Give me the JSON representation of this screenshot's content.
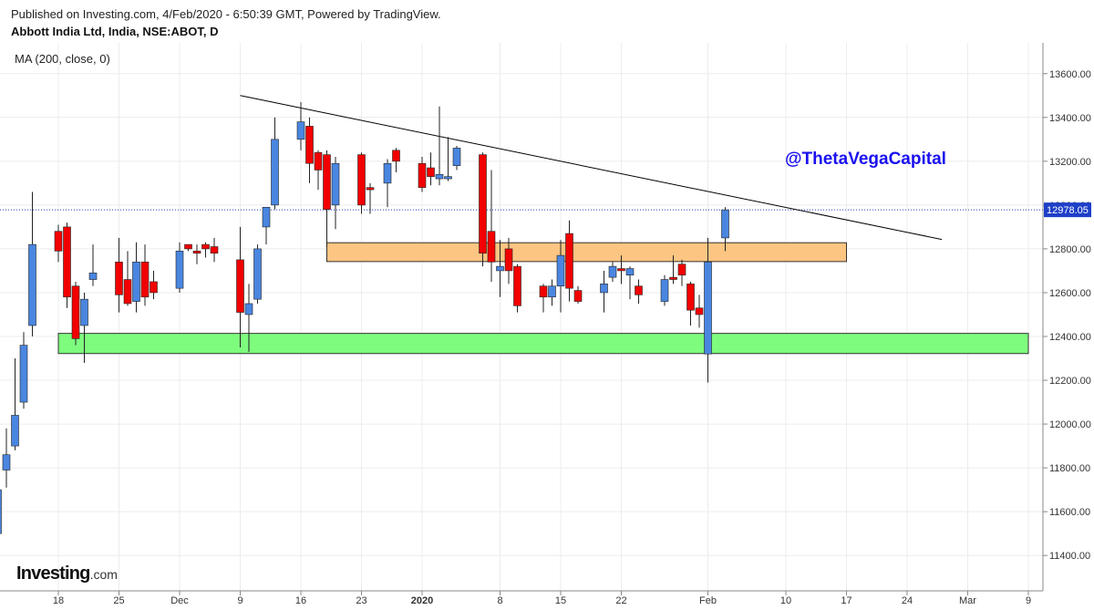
{
  "header": {
    "published_line": "Published on Investing.com, 4/Feb/2020 - 6:50:39 GMT, Powered by TradingView.",
    "symbol_line": "Abbott India Ltd, India, NSE:ABOT, D"
  },
  "indicator_label": "MA (200, close, 0)",
  "watermark": {
    "brand": "Investing",
    "brand_suffix": ".com",
    "handle": "@ThetaVegaCapital"
  },
  "colors": {
    "up": "#4a86e0",
    "down": "#f20000",
    "wick": "#222222",
    "resistance_zone": "#fcc582",
    "support_zone": "#7efc7e",
    "trendline": "#000000",
    "last_price_line": "#1e3fc8",
    "handle_text": "#1a10f0"
  },
  "chart_data": {
    "type": "candlestick",
    "title": "Abbott India Ltd, India, NSE:ABOT, D",
    "y_axis_ticks": [
      "11400.00",
      "11600.00",
      "11800.00",
      "12000.00",
      "12200.00",
      "12400.00",
      "12600.00",
      "12800.00",
      "13000.00",
      "13200.00",
      "13400.00",
      "13600.00"
    ],
    "x_axis_ticks": [
      {
        "label": "18",
        "date": "2019-11-18"
      },
      {
        "label": "25",
        "date": "2019-11-25"
      },
      {
        "label": "Dec",
        "date": "2019-12-02"
      },
      {
        "label": "9",
        "date": "2019-12-09"
      },
      {
        "label": "16",
        "date": "2019-12-16"
      },
      {
        "label": "23",
        "date": "2019-12-23"
      },
      {
        "label": "2020",
        "date": "2019-12-30",
        "bold": true
      },
      {
        "label": "8",
        "date": "2020-01-08"
      },
      {
        "label": "15",
        "date": "2020-01-15"
      },
      {
        "label": "22",
        "date": "2020-01-22"
      },
      {
        "label": "Feb",
        "date": "2020-02-01"
      },
      {
        "label": "10",
        "date": "2020-02-10"
      },
      {
        "label": "17",
        "date": "2020-02-17"
      },
      {
        "label": "24",
        "date": "2020-02-24"
      },
      {
        "label": "Mar",
        "date": "2020-03-02"
      },
      {
        "label": "9",
        "date": "2020-03-09"
      }
    ],
    "last_price": "12978.05",
    "candles": [
      {
        "d": "2019-11-11",
        "o": 11500,
        "h": 11780,
        "l": 11360,
        "c": 11700
      },
      {
        "d": "2019-11-12",
        "o": 11790,
        "h": 11980,
        "l": 11710,
        "c": 11860
      },
      {
        "d": "2019-11-13",
        "o": 11900,
        "h": 12300,
        "l": 11880,
        "c": 12040
      },
      {
        "d": "2019-11-14",
        "o": 12100,
        "h": 12420,
        "l": 12070,
        "c": 12360
      },
      {
        "d": "2019-11-15",
        "o": 12450,
        "h": 13060,
        "l": 12400,
        "c": 12820
      },
      {
        "d": "2019-11-18",
        "o": 12880,
        "h": 12910,
        "l": 12740,
        "c": 12790
      },
      {
        "d": "2019-11-19",
        "o": 12900,
        "h": 12920,
        "l": 12530,
        "c": 12580
      },
      {
        "d": "2019-11-20",
        "o": 12630,
        "h": 12650,
        "l": 12360,
        "c": 12390
      },
      {
        "d": "2019-11-21",
        "o": 12450,
        "h": 12600,
        "l": 12280,
        "c": 12570
      },
      {
        "d": "2019-11-22",
        "o": 12660,
        "h": 12820,
        "l": 12630,
        "c": 12690
      },
      {
        "d": "2019-11-25",
        "o": 12740,
        "h": 12850,
        "l": 12510,
        "c": 12590
      },
      {
        "d": "2019-11-26",
        "o": 12660,
        "h": 12790,
        "l": 12540,
        "c": 12550
      },
      {
        "d": "2019-11-27",
        "o": 12560,
        "h": 12830,
        "l": 12510,
        "c": 12740
      },
      {
        "d": "2019-11-28",
        "o": 12740,
        "h": 12820,
        "l": 12540,
        "c": 12580
      },
      {
        "d": "2019-11-29",
        "o": 12650,
        "h": 12700,
        "l": 12570,
        "c": 12600
      },
      {
        "d": "2019-12-02",
        "o": 12620,
        "h": 12830,
        "l": 12600,
        "c": 12790
      },
      {
        "d": "2019-12-03",
        "o": 12820,
        "h": 12820,
        "l": 12790,
        "c": 12800
      },
      {
        "d": "2019-12-04",
        "o": 12790,
        "h": 12820,
        "l": 12730,
        "c": 12780
      },
      {
        "d": "2019-12-05",
        "o": 12820,
        "h": 12830,
        "l": 12760,
        "c": 12800
      },
      {
        "d": "2019-12-06",
        "o": 12810,
        "h": 12850,
        "l": 12740,
        "c": 12780
      },
      {
        "d": "2019-12-09",
        "o": 12750,
        "h": 12900,
        "l": 12350,
        "c": 12510
      },
      {
        "d": "2019-12-10",
        "o": 12500,
        "h": 12640,
        "l": 12330,
        "c": 12550
      },
      {
        "d": "2019-12-11",
        "o": 12570,
        "h": 12820,
        "l": 12550,
        "c": 12800
      },
      {
        "d": "2019-12-12",
        "o": 12900,
        "h": 12980,
        "l": 12820,
        "c": 12990
      },
      {
        "d": "2019-12-13",
        "o": 13000,
        "h": 13400,
        "l": 12980,
        "c": 13300
      },
      {
        "d": "2019-12-16",
        "o": 13300,
        "h": 13470,
        "l": 13250,
        "c": 13380
      },
      {
        "d": "2019-12-17",
        "o": 13360,
        "h": 13400,
        "l": 13100,
        "c": 13190
      },
      {
        "d": "2019-12-18",
        "o": 13240,
        "h": 13250,
        "l": 13070,
        "c": 13160
      },
      {
        "d": "2019-12-19",
        "o": 13230,
        "h": 13250,
        "l": 12810,
        "c": 12980
      },
      {
        "d": "2019-12-20",
        "o": 13000,
        "h": 13220,
        "l": 12890,
        "c": 13190
      },
      {
        "d": "2019-12-23",
        "o": 13230,
        "h": 13240,
        "l": 12960,
        "c": 13000
      },
      {
        "d": "2019-12-24",
        "o": 13080,
        "h": 13100,
        "l": 12960,
        "c": 13070
      },
      {
        "d": "2019-12-26",
        "o": 13100,
        "h": 13210,
        "l": 12990,
        "c": 13190
      },
      {
        "d": "2019-12-27",
        "o": 13250,
        "h": 13260,
        "l": 13150,
        "c": 13200
      },
      {
        "d": "2019-12-30",
        "o": 13190,
        "h": 13220,
        "l": 13060,
        "c": 13080
      },
      {
        "d": "2019-12-31",
        "o": 13170,
        "h": 13240,
        "l": 13090,
        "c": 13130
      },
      {
        "d": "2020-01-01",
        "o": 13120,
        "h": 13450,
        "l": 13090,
        "c": 13140
      },
      {
        "d": "2020-01-02",
        "o": 13120,
        "h": 13310,
        "l": 13110,
        "c": 13130
      },
      {
        "d": "2020-01-03",
        "o": 13180,
        "h": 13270,
        "l": 13160,
        "c": 13260
      },
      {
        "d": "2020-01-06",
        "o": 13230,
        "h": 13240,
        "l": 12720,
        "c": 12780
      },
      {
        "d": "2020-01-07",
        "o": 12880,
        "h": 13160,
        "l": 12650,
        "c": 12740
      },
      {
        "d": "2020-01-08",
        "o": 12700,
        "h": 12840,
        "l": 12580,
        "c": 12720
      },
      {
        "d": "2020-01-09",
        "o": 12800,
        "h": 12850,
        "l": 12640,
        "c": 12700
      },
      {
        "d": "2020-01-10",
        "o": 12720,
        "h": 12730,
        "l": 12510,
        "c": 12540
      },
      {
        "d": "2020-01-13",
        "o": 12630,
        "h": 12640,
        "l": 12510,
        "c": 12580
      },
      {
        "d": "2020-01-14",
        "o": 12580,
        "h": 12660,
        "l": 12540,
        "c": 12630
      },
      {
        "d": "2020-01-15",
        "o": 12630,
        "h": 12840,
        "l": 12510,
        "c": 12770
      },
      {
        "d": "2020-01-16",
        "o": 12870,
        "h": 12930,
        "l": 12560,
        "c": 12620
      },
      {
        "d": "2020-01-17",
        "o": 12610,
        "h": 12630,
        "l": 12550,
        "c": 12560
      },
      {
        "d": "2020-01-20",
        "o": 12600,
        "h": 12700,
        "l": 12510,
        "c": 12640
      },
      {
        "d": "2020-01-21",
        "o": 12670,
        "h": 12740,
        "l": 12650,
        "c": 12720
      },
      {
        "d": "2020-01-22",
        "o": 12710,
        "h": 12770,
        "l": 12640,
        "c": 12700
      },
      {
        "d": "2020-01-23",
        "o": 12680,
        "h": 12720,
        "l": 12570,
        "c": 12710
      },
      {
        "d": "2020-01-24",
        "o": 12630,
        "h": 12660,
        "l": 12550,
        "c": 12590
      },
      {
        "d": "2020-01-27",
        "o": 12560,
        "h": 12680,
        "l": 12540,
        "c": 12660
      },
      {
        "d": "2020-01-28",
        "o": 12670,
        "h": 12770,
        "l": 12640,
        "c": 12660
      },
      {
        "d": "2020-01-29",
        "o": 12730,
        "h": 12750,
        "l": 12630,
        "c": 12680
      },
      {
        "d": "2020-01-30",
        "o": 12640,
        "h": 12650,
        "l": 12450,
        "c": 12520
      },
      {
        "d": "2020-01-31",
        "o": 12530,
        "h": 12590,
        "l": 12440,
        "c": 12500
      },
      {
        "d": "2020-02-01",
        "o": 12320,
        "h": 12850,
        "l": 12190,
        "c": 12740
      },
      {
        "d": "2020-02-03",
        "o": 12850,
        "h": 12990,
        "l": 12790,
        "c": 12978
      }
    ],
    "zones": [
      {
        "name": "resistance-zone",
        "color": "#fcc582",
        "x1": "2019-12-19",
        "x2": "2020-02-17",
        "y1": 12742,
        "y2": 12828
      },
      {
        "name": "support-zone",
        "color": "#7efc7e",
        "x1": "2019-11-18",
        "x2": "2020-03-09",
        "y1": 12322,
        "y2": 12414
      }
    ],
    "trendline": {
      "x1": "2019-12-09",
      "y1": 13500,
      "x2": "2020-02-28",
      "y2": 12843
    }
  }
}
